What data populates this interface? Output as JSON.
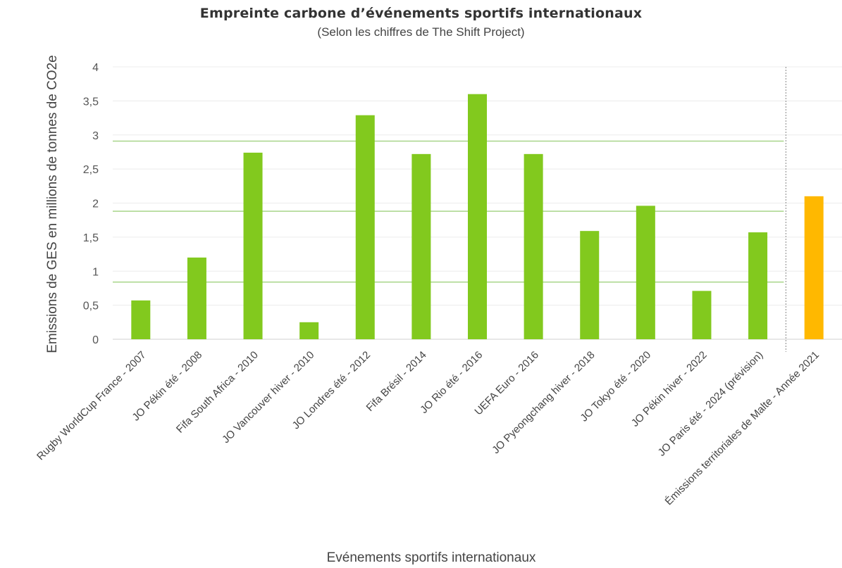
{
  "chart_data": {
    "type": "bar",
    "title": "Empreinte carbone d’événements sportifs internationaux",
    "subtitle": "(Selon les chiffres de The Shift Project)",
    "xlabel": "Evénements sportifs internationaux",
    "ylabel": "Emissions de GES en millions de tonnes de CO2e",
    "ylim": [
      0,
      4
    ],
    "yticks": [
      "0",
      "0,5",
      "1",
      "1,5",
      "2",
      "2,5",
      "3",
      "3,5",
      "4"
    ],
    "grid": true,
    "categories": [
      "Rugby WorldCup France - 2007",
      "JO Pékin été - 2008",
      "Fifa South Africa - 2010",
      "JO Vancouver hiver - 2010",
      "JO Londres été - 2012",
      "Fifa Brésil - 2014",
      "JO Rio été - 2016",
      "UEFA Euro - 2016",
      "JO Pyeongchang hiver - 2018",
      "JO Tokyo été - 2020",
      "JO Pékin hiver - 2022",
      "JO Paris été - 2024 (prévision)",
      "Émissions territoriales de Malte - Année 2021"
    ],
    "values": [
      0.57,
      1.2,
      2.74,
      0.25,
      3.29,
      2.72,
      3.6,
      2.72,
      1.59,
      1.96,
      0.71,
      1.57,
      2.1
    ],
    "bar_colors": [
      "#82c91e",
      "#82c91e",
      "#82c91e",
      "#82c91e",
      "#82c91e",
      "#82c91e",
      "#82c91e",
      "#82c91e",
      "#82c91e",
      "#82c91e",
      "#82c91e",
      "#82c91e",
      "#ffb800"
    ],
    "reference_lines": [
      0.84,
      1.88,
      2.91
    ],
    "reference_line_color": "#a8d58a",
    "separator_after_index": 11
  }
}
